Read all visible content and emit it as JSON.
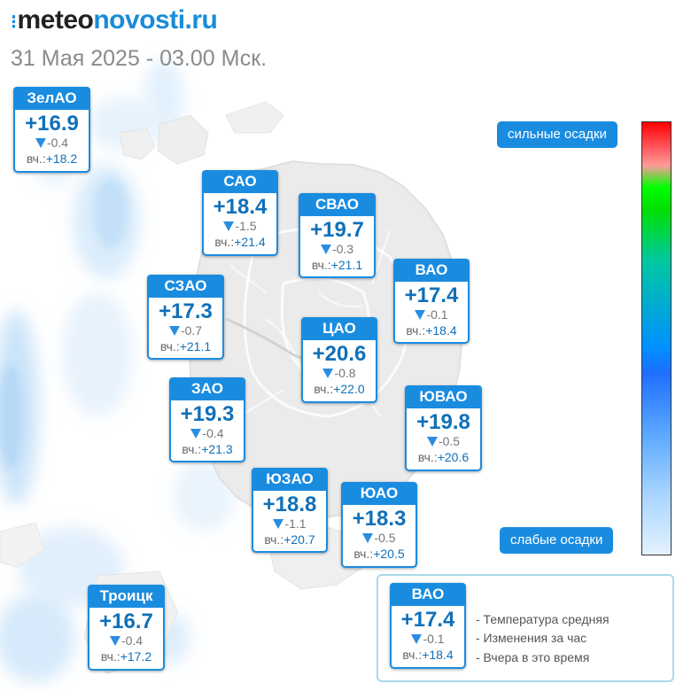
{
  "header": {
    "logo_dots": "⁝",
    "logo_part1": "meteo",
    "logo_part2": "novosti.ru",
    "subtitle": "31 Мая 2025 - 03.00 Мск."
  },
  "districts": [
    {
      "name": "ЗелАО",
      "temp": "+16.9",
      "change": "-0.4",
      "yest_label": "вч.:",
      "yest": "+18.2"
    },
    {
      "name": "САО",
      "temp": "+18.4",
      "change": "-1.5",
      "yest_label": "вч.:",
      "yest": "+21.4"
    },
    {
      "name": "СВАО",
      "temp": "+19.7",
      "change": "-0.3",
      "yest_label": "вч.:",
      "yest": "+21.1"
    },
    {
      "name": "ВАО",
      "temp": "+17.4",
      "change": "-0.1",
      "yest_label": "вч.:",
      "yest": "+18.4"
    },
    {
      "name": "СЗАО",
      "temp": "+17.3",
      "change": "-0.7",
      "yest_label": "вч.:",
      "yest": "+21.1"
    },
    {
      "name": "ЦАО",
      "temp": "+20.6",
      "change": "-0.8",
      "yest_label": "вч.:",
      "yest": "+22.0"
    },
    {
      "name": "ЗАО",
      "temp": "+19.3",
      "change": "-0.4",
      "yest_label": "вч.:",
      "yest": "+21.3"
    },
    {
      "name": "ЮВАО",
      "temp": "+19.8",
      "change": "-0.5",
      "yest_label": "вч.:",
      "yest": "+20.6"
    },
    {
      "name": "ЮЗАО",
      "temp": "+18.8",
      "change": "-1.1",
      "yest_label": "вч.:",
      "yest": "+20.7"
    },
    {
      "name": "ЮАО",
      "temp": "+18.3",
      "change": "-0.5",
      "yest_label": "вч.:",
      "yest": "+20.5"
    },
    {
      "name": "Троицк",
      "temp": "+16.7",
      "change": "-0.4",
      "yest_label": "вч.:",
      "yest": "+17.2"
    }
  ],
  "precip_legend": {
    "strong_label": "сильные осадки",
    "weak_label": "слабые осадки"
  },
  "key": {
    "card": {
      "name": "ВАО",
      "temp": "+17.4",
      "change": "-0.1",
      "yest_label": "вч.:",
      "yest": "+18.4"
    },
    "lines": [
      "- Температура средняя",
      "- Изменения за час",
      "- Вчера в это время"
    ]
  },
  "colors": {
    "accent": "#1a8ce0",
    "temp_text": "#1070b8",
    "change_arrow": "#2a8de0",
    "key_border": "#aad8ea"
  }
}
